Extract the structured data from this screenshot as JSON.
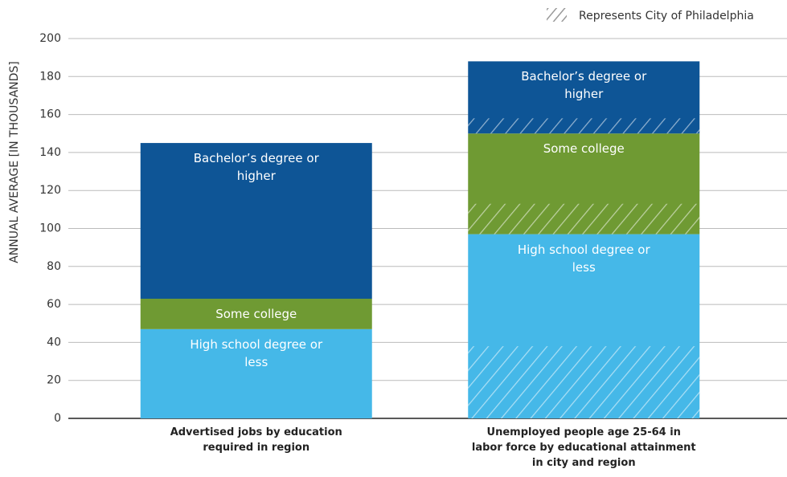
{
  "chart_data": {
    "type": "stacked_bar",
    "y_axis_label": "ANNUAL AVERAGE [IN THOUSANDS]",
    "categories": [
      "Advertised jobs by education required in region",
      "Unemployed people age 25-64 in labor force by educational attainment in city and region"
    ],
    "series": [
      {
        "name": "High school degree or less",
        "color": "#45b8e8",
        "values": [
          47,
          97
        ],
        "city_values": [
          null,
          38
        ]
      },
      {
        "name": "Some college",
        "color": "#6f9a33",
        "values": [
          16,
          53
        ],
        "city_values": [
          null,
          16
        ]
      },
      {
        "name": "Bachelor’s degree or higher",
        "color": "#0e5596",
        "values": [
          82,
          38
        ],
        "city_values": [
          null,
          8
        ]
      }
    ],
    "hatch_legend": "Represents City of Philadelphia",
    "ylim": [
      0,
      200
    ],
    "yticks": [
      0,
      20,
      40,
      60,
      80,
      100,
      120,
      140,
      160,
      180,
      200
    ],
    "grid": true
  }
}
